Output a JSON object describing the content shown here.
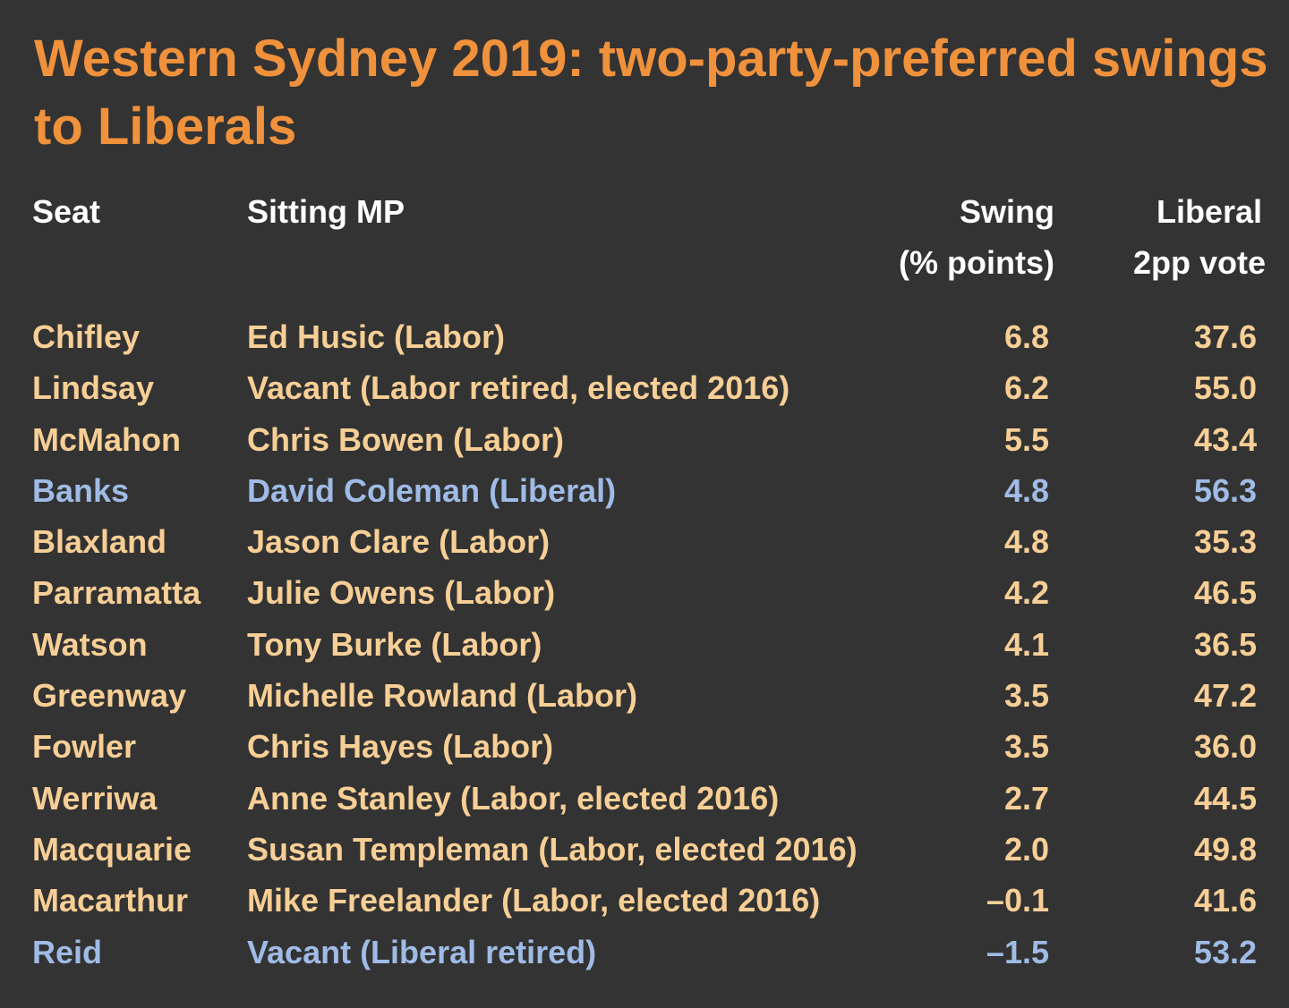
{
  "chart_data": {
    "type": "table",
    "title": "Western Sydney 2019: two-party-preferred swings to Liberals",
    "columns": {
      "seat": "Seat",
      "mp": "Sitting MP",
      "swing_line1": "Swing",
      "swing_line2": "(% points)",
      "vote_line1": "Liberal",
      "vote_line2": "2pp vote"
    },
    "rows": [
      {
        "seat": "Chifley",
        "mp": "Ed Husic (Labor)",
        "swing": "6.8",
        "vote": "37.6",
        "party": "labor"
      },
      {
        "seat": "Lindsay",
        "mp": "Vacant (Labor retired, elected 2016)",
        "swing": "6.2",
        "vote": "55.0",
        "party": "labor"
      },
      {
        "seat": "McMahon",
        "mp": "Chris Bowen (Labor)",
        "swing": "5.5",
        "vote": "43.4",
        "party": "labor"
      },
      {
        "seat": "Banks",
        "mp": "David Coleman (Liberal)",
        "swing": "4.8",
        "vote": "56.3",
        "party": "liberal"
      },
      {
        "seat": "Blaxland",
        "mp": "Jason Clare (Labor)",
        "swing": "4.8",
        "vote": "35.3",
        "party": "labor"
      },
      {
        "seat": "Parramatta",
        "mp": "Julie Owens (Labor)",
        "swing": "4.2",
        "vote": "46.5",
        "party": "labor"
      },
      {
        "seat": "Watson",
        "mp": "Tony Burke (Labor)",
        "swing": "4.1",
        "vote": "36.5",
        "party": "labor"
      },
      {
        "seat": "Greenway",
        "mp": "Michelle Rowland (Labor)",
        "swing": "3.5",
        "vote": "47.2",
        "party": "labor"
      },
      {
        "seat": "Fowler",
        "mp": "Chris Hayes (Labor)",
        "swing": "3.5",
        "vote": "36.0",
        "party": "labor"
      },
      {
        "seat": "Werriwa",
        "mp": "Anne Stanley (Labor, elected 2016)",
        "swing": "2.7",
        "vote": "44.5",
        "party": "labor"
      },
      {
        "seat": "Macquarie",
        "mp": "Susan Templeman (Labor, elected 2016)",
        "swing": "2.0",
        "vote": "49.8",
        "party": "labor"
      },
      {
        "seat": "Macarthur",
        "mp": "Mike Freelander (Labor, elected 2016)",
        "swing": "–0.1",
        "vote": "41.6",
        "party": "labor"
      },
      {
        "seat": "Reid",
        "mp": "Vacant (Liberal retired)",
        "swing": "–1.5",
        "vote": "53.2",
        "party": "liberal"
      }
    ],
    "colors": {
      "background": "#333333",
      "title": "#f0913c",
      "header": "#ffffff",
      "labor_row": "#f7cf96",
      "liberal_row": "#9fbbe6"
    }
  }
}
